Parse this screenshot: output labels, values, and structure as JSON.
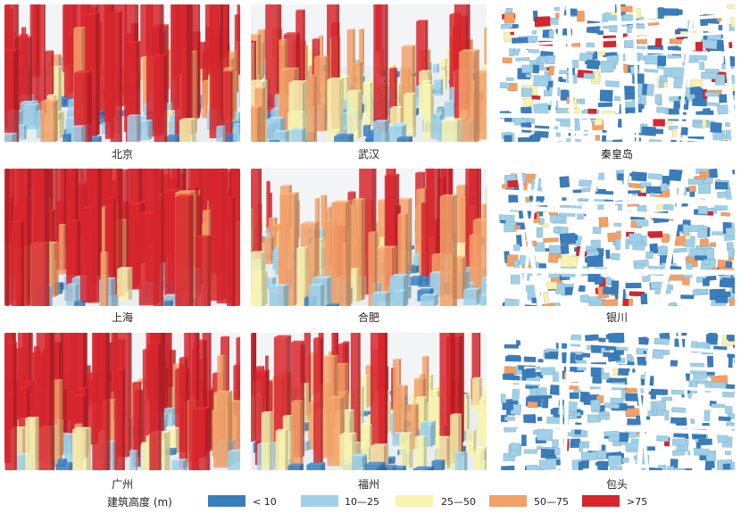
{
  "panels": [
    {
      "name": "北京",
      "style": "persp",
      "density": "high-red",
      "seed": 11
    },
    {
      "name": "武汉",
      "style": "persp",
      "density": "mixed",
      "seed": 23
    },
    {
      "name": "秦皇岛",
      "style": "plan",
      "density": "plan-mixed",
      "seed": 37
    },
    {
      "name": "上海",
      "style": "persp",
      "density": "very-red",
      "seed": 41
    },
    {
      "name": "合肥",
      "style": "persp",
      "density": "mixed-orange",
      "seed": 53
    },
    {
      "name": "银川",
      "style": "plan",
      "density": "plan-orange",
      "seed": 67
    },
    {
      "name": "广州",
      "style": "persp",
      "density": "red-mid",
      "seed": 71
    },
    {
      "name": "福州",
      "style": "persp",
      "density": "yellow-blue",
      "seed": 83
    },
    {
      "name": "包头",
      "style": "plan",
      "density": "plan-blue",
      "seed": 97
    }
  ],
  "legend": {
    "title": "建筑高度 (m)",
    "items": [
      {
        "label": "< 10",
        "color": "#3a7dbd"
      },
      {
        "label": "10—25",
        "color": "#9fd0e8"
      },
      {
        "label": "25—50",
        "color": "#f7f3b0"
      },
      {
        "label": "50—75",
        "color": "#f2a068"
      },
      {
        "label": ">75",
        "color": "#d7262e"
      }
    ]
  }
}
